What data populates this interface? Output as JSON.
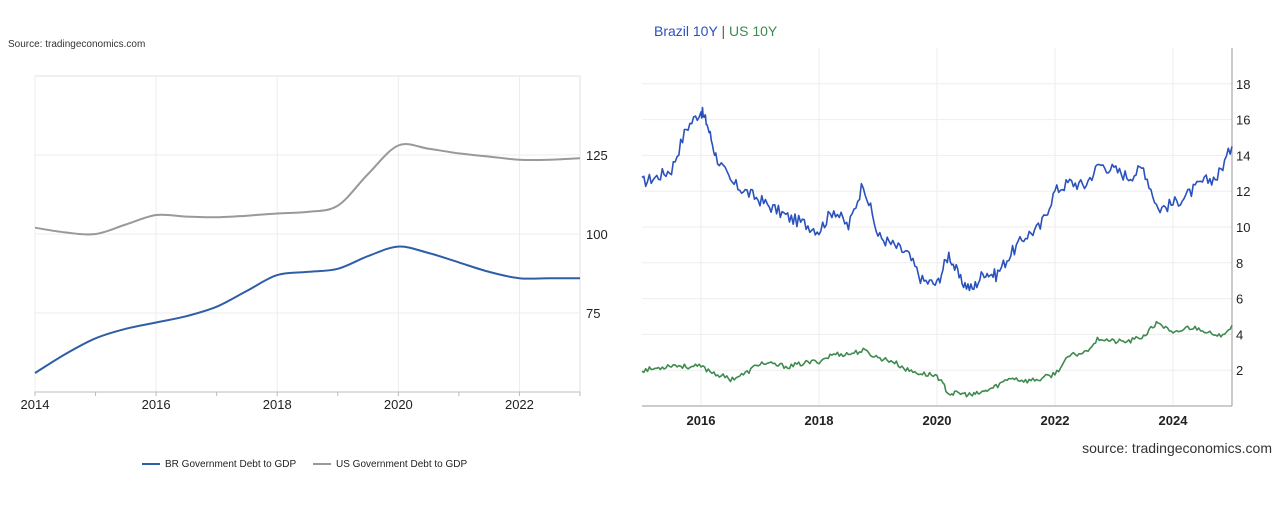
{
  "left_source": "Source: tradingeconomics.com",
  "right_source": "source: tradingeconomics.com",
  "chart_data": [
    {
      "type": "line",
      "title": "",
      "xlim": [
        2014,
        2023
      ],
      "ylim": [
        50,
        150
      ],
      "x_ticks": [
        2014,
        2016,
        2018,
        2020,
        2022
      ],
      "y_ticks": [
        75,
        100,
        125
      ],
      "y_axis_side": "right",
      "grid": true,
      "legend": "bottom",
      "series": [
        {
          "name": "BR Government Debt to GDP",
          "color": "#2e5ea6",
          "x": [
            2014,
            2014.5,
            2015,
            2015.5,
            2016,
            2016.5,
            2017,
            2017.5,
            2018,
            2018.5,
            2019,
            2019.5,
            2020,
            2020.5,
            2021,
            2021.5,
            2022,
            2022.5,
            2023
          ],
          "values": [
            56,
            62,
            67,
            70,
            72,
            74,
            77,
            82,
            87,
            88,
            89,
            93,
            96,
            94,
            91,
            88,
            86,
            86,
            86
          ]
        },
        {
          "name": "US Government Debt to GDP",
          "color": "#999999",
          "x": [
            2014,
            2014.5,
            2015,
            2015.5,
            2016,
            2016.5,
            2017,
            2017.5,
            2018,
            2018.5,
            2019,
            2019.5,
            2020,
            2020.5,
            2021,
            2021.5,
            2022,
            2022.5,
            2023
          ],
          "values": [
            102,
            100.5,
            100,
            103,
            106,
            105.5,
            105.3,
            105.8,
            106.5,
            107,
            109,
            119,
            128,
            127,
            125.5,
            124.5,
            123.5,
            123.5,
            124
          ]
        }
      ]
    },
    {
      "type": "line",
      "title": "",
      "xlim": [
        2015,
        2025
      ],
      "ylim": [
        0,
        20
      ],
      "x_ticks": [
        2016,
        2018,
        2020,
        2022,
        2024
      ],
      "y_ticks": [
        2,
        4,
        6,
        8,
        10,
        12,
        14,
        16,
        18
      ],
      "y_axis_side": "right",
      "grid": true,
      "legend": "top-left",
      "series": [
        {
          "name": "Brazil 10Y",
          "color": "#2a52be",
          "x": [
            2015.0,
            2015.25,
            2015.5,
            2015.75,
            2016.0,
            2016.1,
            2016.25,
            2016.5,
            2016.75,
            2017.0,
            2017.25,
            2017.5,
            2017.75,
            2018.0,
            2018.25,
            2018.5,
            2018.75,
            2019.0,
            2019.25,
            2019.5,
            2019.75,
            2020.0,
            2020.2,
            2020.4,
            2020.6,
            2020.8,
            2021.0,
            2021.25,
            2021.5,
            2021.75,
            2022.0,
            2022.25,
            2022.5,
            2022.75,
            2023.0,
            2023.25,
            2023.5,
            2023.75,
            2024.0,
            2024.25,
            2024.5,
            2024.75,
            2025.0
          ],
          "values": [
            12.5,
            12.8,
            13.2,
            15.5,
            16.5,
            15.8,
            14.0,
            12.5,
            12.0,
            11.5,
            11.0,
            10.5,
            10.2,
            9.8,
            11.0,
            10.0,
            12.5,
            9.5,
            9.0,
            8.5,
            7.0,
            6.8,
            8.5,
            7.0,
            6.5,
            7.5,
            7.3,
            8.5,
            9.5,
            10.0,
            12.0,
            12.5,
            12.3,
            13.5,
            13.2,
            12.8,
            13.3,
            11.0,
            11.3,
            11.8,
            12.5,
            12.8,
            14.5
          ]
        },
        {
          "name": "US 10Y",
          "color": "#3f8a4f",
          "x": [
            2015.0,
            2015.25,
            2015.5,
            2015.75,
            2016.0,
            2016.25,
            2016.5,
            2016.75,
            2017.0,
            2017.25,
            2017.5,
            2017.75,
            2018.0,
            2018.25,
            2018.5,
            2018.75,
            2019.0,
            2019.25,
            2019.5,
            2019.75,
            2020.0,
            2020.2,
            2020.4,
            2020.6,
            2020.8,
            2021.0,
            2021.25,
            2021.5,
            2021.75,
            2022.0,
            2022.25,
            2022.5,
            2022.75,
            2023.0,
            2023.25,
            2023.5,
            2023.75,
            2024.0,
            2024.25,
            2024.5,
            2024.75,
            2025.0
          ],
          "values": [
            2.0,
            2.1,
            2.3,
            2.2,
            2.2,
            1.8,
            1.5,
            1.8,
            2.4,
            2.3,
            2.2,
            2.4,
            2.5,
            2.9,
            2.9,
            3.1,
            2.7,
            2.5,
            2.0,
            1.8,
            1.7,
            0.7,
            0.7,
            0.6,
            0.8,
            1.1,
            1.6,
            1.4,
            1.5,
            1.8,
            2.8,
            3.0,
            3.8,
            3.6,
            3.6,
            3.9,
            4.7,
            4.0,
            4.4,
            4.3,
            3.8,
            4.5
          ]
        }
      ]
    }
  ]
}
